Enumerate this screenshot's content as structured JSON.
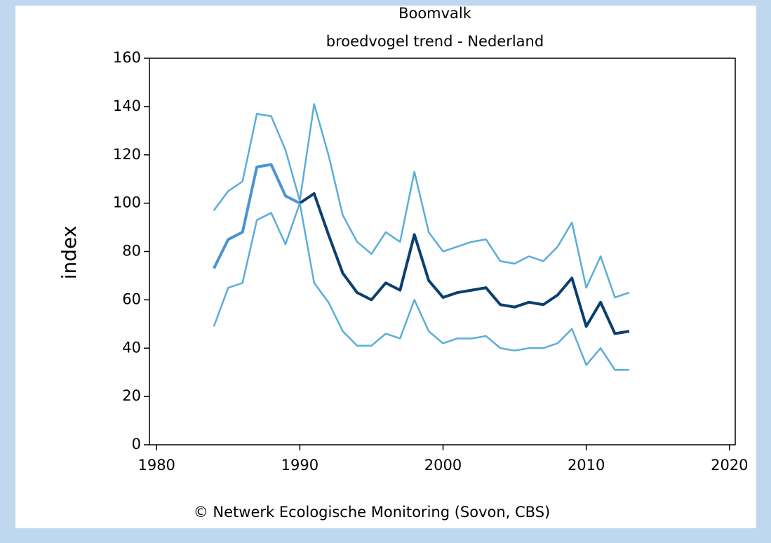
{
  "chart_data": {
    "type": "line",
    "title": "Boomvalk",
    "subtitle": "broedvogel trend - Nederland",
    "y_label": "index",
    "footer": "© Netwerk Ecologische Monitoring (Sovon, CBS)",
    "xlim": [
      1979.5,
      2020.4
    ],
    "xticks": [
      1980,
      1990,
      2000,
      2010,
      2020
    ],
    "ylim": [
      0,
      160
    ],
    "yticks": [
      0,
      20,
      40,
      60,
      80,
      100,
      120,
      140,
      160
    ],
    "series": [
      {
        "color": "#4a94d4",
        "x": [
          1984,
          1985,
          1986,
          1987,
          1988,
          1989,
          1990
        ],
        "values": [
          73,
          85,
          88,
          115,
          116,
          103,
          100
        ]
      },
      {
        "color": "#0b3f6e",
        "x": [
          1990,
          1991,
          1992,
          1993,
          1994,
          1995,
          1996,
          1997,
          1998,
          1999,
          2000,
          2001,
          2002,
          2003,
          2004,
          2005,
          2006,
          2007,
          2008,
          2009,
          2010,
          2011,
          2012,
          2013
        ],
        "values": [
          100,
          104,
          87,
          71,
          63,
          60,
          67,
          64,
          87,
          68,
          61,
          63,
          64,
          65,
          58,
          57,
          59,
          58,
          62,
          69,
          49,
          59,
          46,
          47
        ]
      },
      {
        "color": "#5aaed8",
        "x": [
          1984,
          1985,
          1986,
          1987,
          1988,
          1989,
          1990,
          1991,
          1992,
          1993,
          1994,
          1995,
          1996,
          1997,
          1998,
          1999,
          2000,
          2001,
          2002,
          2003,
          2004,
          2005,
          2006,
          2007,
          2008,
          2009,
          2010,
          2011,
          2012,
          2013
        ],
        "values": [
          97,
          105,
          109,
          137,
          136,
          122,
          101,
          141,
          120,
          95,
          84,
          79,
          88,
          84,
          113,
          88,
          80,
          82,
          84,
          85,
          76,
          75,
          78,
          76,
          82,
          92,
          65,
          78,
          61,
          63
        ]
      },
      {
        "color": "#5aaed8",
        "x": [
          1984,
          1985,
          1986,
          1987,
          1988,
          1989,
          1990,
          1991,
          1992,
          1993,
          1994,
          1995,
          1996,
          1997,
          1998,
          1999,
          2000,
          2001,
          2002,
          2003,
          2004,
          2005,
          2006,
          2007,
          2008,
          2009,
          2010,
          2011,
          2012,
          2013
        ],
        "values": [
          49,
          65,
          67,
          93,
          96,
          83,
          100,
          67,
          59,
          47,
          41,
          41,
          46,
          44,
          60,
          47,
          42,
          44,
          44,
          45,
          40,
          39,
          40,
          40,
          42,
          48,
          33,
          40,
          31,
          31
        ]
      }
    ]
  }
}
